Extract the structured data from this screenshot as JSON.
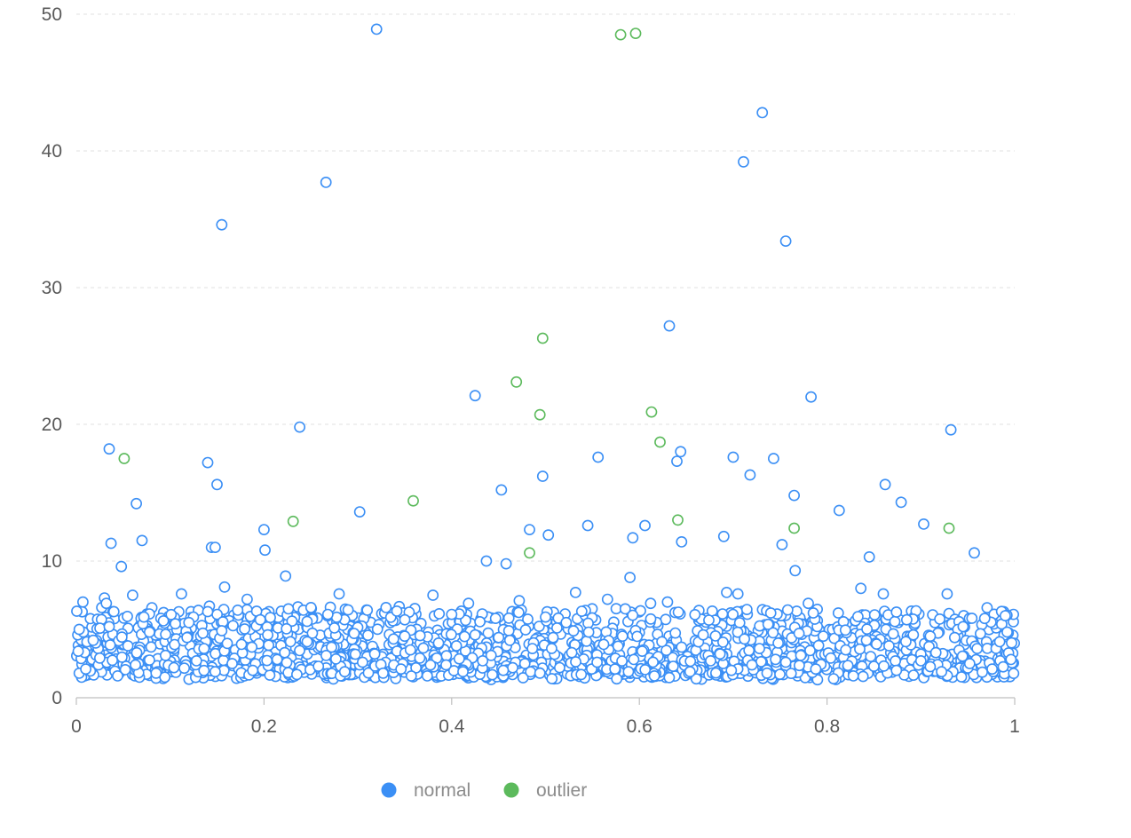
{
  "chart_data": {
    "type": "scatter",
    "title": "",
    "xlabel": "",
    "ylabel": "",
    "xlim": [
      0,
      1
    ],
    "ylim": [
      0,
      50
    ],
    "x_ticks": [
      "0",
      "0.2",
      "0.4",
      "0.6",
      "0.8",
      "1"
    ],
    "y_ticks": [
      "0",
      "10",
      "20",
      "30",
      "40",
      "50"
    ],
    "grid": {
      "horizontal": true,
      "vertical": false,
      "style": "dashed"
    },
    "legend": {
      "position": "bottom-center"
    },
    "series": [
      {
        "name": "normal",
        "color": "#3b8ff5",
        "marker": "hollow-circle",
        "density_band": {
          "y_range": [
            1.3,
            8
          ],
          "note": "dense cluster of points across the full x range 0 to 1"
        },
        "points": [
          [
            0.007,
            7.0
          ],
          [
            0.03,
            7.3
          ],
          [
            0.032,
            6.9
          ],
          [
            0.035,
            5.2
          ],
          [
            0.04,
            6.3
          ],
          [
            0.048,
            9.6
          ],
          [
            0.06,
            7.5
          ],
          [
            0.072,
            5.9
          ],
          [
            0.112,
            7.6
          ],
          [
            0.12,
            5.5
          ],
          [
            0.14,
            6.3
          ],
          [
            0.158,
            8.1
          ],
          [
            0.172,
            6.4
          ],
          [
            0.182,
            7.2
          ],
          [
            0.196,
            5.7
          ],
          [
            0.226,
            6.5
          ],
          [
            0.242,
            6.4
          ],
          [
            0.25,
            6.6
          ],
          [
            0.268,
            6.1
          ],
          [
            0.28,
            7.6
          ],
          [
            0.31,
            6.4
          ],
          [
            0.33,
            6.6
          ],
          [
            0.35,
            4.5
          ],
          [
            0.38,
            7.5
          ],
          [
            0.4,
            6.1
          ],
          [
            0.418,
            6.9
          ],
          [
            0.45,
            4.4
          ],
          [
            0.472,
            7.1
          ],
          [
            0.5,
            5.9
          ],
          [
            0.522,
            5.5
          ],
          [
            0.532,
            7.7
          ],
          [
            0.566,
            7.2
          ],
          [
            0.585,
            6.5
          ],
          [
            0.612,
            6.9
          ],
          [
            0.63,
            7.0
          ],
          [
            0.662,
            4.9
          ],
          [
            0.693,
            7.7
          ],
          [
            0.705,
            7.6
          ],
          [
            0.74,
            6.2
          ],
          [
            0.766,
            9.3
          ],
          [
            0.78,
            6.9
          ],
          [
            0.812,
            6.2
          ],
          [
            0.836,
            8.0
          ],
          [
            0.86,
            7.6
          ],
          [
            0.885,
            5.7
          ],
          [
            0.91,
            4.5
          ],
          [
            0.928,
            7.6
          ],
          [
            0.945,
            5.2
          ],
          [
            0.968,
            5.8
          ],
          [
            0.99,
            6.0
          ],
          [
            0.002,
            3.4
          ],
          [
            0.01,
            2.1
          ],
          [
            0.018,
            4.2
          ],
          [
            0.025,
            2.9
          ],
          [
            0.044,
            1.6
          ],
          [
            0.055,
            3.8
          ],
          [
            0.063,
            2.4
          ],
          [
            0.078,
            4.8
          ],
          [
            0.085,
            1.8
          ],
          [
            0.095,
            3.1
          ],
          [
            0.104,
            2.2
          ],
          [
            0.118,
            4.4
          ],
          [
            0.128,
            2.7
          ],
          [
            0.136,
            3.6
          ],
          [
            0.148,
            1.9
          ],
          [
            0.155,
            4.9
          ],
          [
            0.166,
            2.5
          ],
          [
            0.176,
            3.9
          ],
          [
            0.188,
            2.0
          ],
          [
            0.204,
            4.6
          ],
          [
            0.214,
            2.8
          ],
          [
            0.222,
            3.3
          ],
          [
            0.235,
            1.7
          ],
          [
            0.246,
            4.1
          ],
          [
            0.258,
            2.3
          ],
          [
            0.272,
            3.7
          ],
          [
            0.286,
            1.9
          ],
          [
            0.296,
            4.7
          ],
          [
            0.305,
            2.6
          ],
          [
            0.318,
            3.2
          ],
          [
            0.327,
            1.8
          ],
          [
            0.338,
            4.3
          ],
          [
            0.346,
            2.1
          ],
          [
            0.356,
            3.5
          ],
          [
            0.366,
            2.9
          ],
          [
            0.374,
            1.6
          ],
          [
            0.386,
            4.0
          ],
          [
            0.394,
            2.4
          ],
          [
            0.405,
            3.8
          ],
          [
            0.412,
            1.9
          ],
          [
            0.425,
            4.6
          ],
          [
            0.433,
            2.7
          ],
          [
            0.442,
            3.1
          ],
          [
            0.455,
            2.0
          ],
          [
            0.462,
            4.2
          ],
          [
            0.478,
            2.5
          ],
          [
            0.486,
            3.6
          ],
          [
            0.494,
            1.8
          ],
          [
            0.508,
            4.4
          ],
          [
            0.515,
            2.2
          ],
          [
            0.528,
            3.3
          ],
          [
            0.538,
            1.7
          ],
          [
            0.546,
            4.8
          ],
          [
            0.555,
            2.6
          ],
          [
            0.562,
            3.9
          ],
          [
            0.574,
            2.1
          ],
          [
            0.582,
            4.5
          ],
          [
            0.594,
            2.8
          ],
          [
            0.603,
            3.4
          ],
          [
            0.616,
            1.6
          ],
          [
            0.624,
            4.1
          ],
          [
            0.636,
            2.3
          ],
          [
            0.645,
            3.7
          ],
          [
            0.654,
            1.9
          ],
          [
            0.668,
            4.6
          ],
          [
            0.676,
            2.7
          ],
          [
            0.686,
            3.2
          ],
          [
            0.698,
            2.0
          ],
          [
            0.712,
            4.3
          ],
          [
            0.72,
            2.4
          ],
          [
            0.728,
            3.6
          ],
          [
            0.736,
            1.8
          ],
          [
            0.748,
            4.0
          ],
          [
            0.756,
            2.6
          ],
          [
            0.772,
            3.1
          ],
          [
            0.788,
            2.1
          ],
          [
            0.796,
            4.5
          ],
          [
            0.804,
            2.9
          ],
          [
            0.82,
            3.5
          ],
          [
            0.828,
            1.6
          ],
          [
            0.842,
            4.2
          ],
          [
            0.85,
            2.3
          ],
          [
            0.866,
            3.8
          ],
          [
            0.874,
            2.0
          ],
          [
            0.892,
            4.6
          ],
          [
            0.9,
            2.7
          ],
          [
            0.916,
            3.3
          ],
          [
            0.922,
            1.9
          ],
          [
            0.936,
            4.4
          ],
          [
            0.952,
            2.5
          ],
          [
            0.96,
            3.6
          ],
          [
            0.976,
            2.1
          ],
          [
            0.984,
            4.1
          ],
          [
            0.996,
            2.8
          ]
        ]
      },
      {
        "name": "outlier",
        "color": "#5cba5c",
        "marker": "hollow-circle",
        "points": [
          [
            0.051,
            17.5
          ],
          [
            0.231,
            12.9
          ],
          [
            0.359,
            14.4
          ],
          [
            0.469,
            23.1
          ],
          [
            0.483,
            10.6
          ],
          [
            0.494,
            20.7
          ],
          [
            0.497,
            26.3
          ],
          [
            0.58,
            48.5
          ],
          [
            0.596,
            48.6
          ],
          [
            0.613,
            20.9
          ],
          [
            0.622,
            18.7
          ],
          [
            0.641,
            13.0
          ],
          [
            0.765,
            12.4
          ],
          [
            0.93,
            12.4
          ]
        ]
      }
    ],
    "scattered_points_note": "normal outliers above the dense band",
    "normal_high_points": [
      [
        0.035,
        18.2
      ],
      [
        0.037,
        11.3
      ],
      [
        0.064,
        14.2
      ],
      [
        0.07,
        11.5
      ],
      [
        0.14,
        17.2
      ],
      [
        0.144,
        11.0
      ],
      [
        0.148,
        11.0
      ],
      [
        0.15,
        15.6
      ],
      [
        0.155,
        34.6
      ],
      [
        0.2,
        12.3
      ],
      [
        0.201,
        10.8
      ],
      [
        0.223,
        8.9
      ],
      [
        0.238,
        19.8
      ],
      [
        0.266,
        37.7
      ],
      [
        0.302,
        13.6
      ],
      [
        0.32,
        48.9
      ],
      [
        0.425,
        22.1
      ],
      [
        0.453,
        15.2
      ],
      [
        0.483,
        12.3
      ],
      [
        0.497,
        16.2
      ],
      [
        0.503,
        11.9
      ],
      [
        0.545,
        12.6
      ],
      [
        0.556,
        17.6
      ],
      [
        0.593,
        11.7
      ],
      [
        0.606,
        12.6
      ],
      [
        0.632,
        27.2
      ],
      [
        0.64,
        17.3
      ],
      [
        0.644,
        18.0
      ],
      [
        0.645,
        11.4
      ],
      [
        0.69,
        11.8
      ],
      [
        0.7,
        17.6
      ],
      [
        0.711,
        39.2
      ],
      [
        0.718,
        16.3
      ],
      [
        0.731,
        42.8
      ],
      [
        0.743,
        17.5
      ],
      [
        0.752,
        11.2
      ],
      [
        0.756,
        33.4
      ],
      [
        0.765,
        14.8
      ],
      [
        0.783,
        22.0
      ],
      [
        0.813,
        13.7
      ],
      [
        0.845,
        10.3
      ],
      [
        0.862,
        15.6
      ],
      [
        0.879,
        14.3
      ],
      [
        0.903,
        12.7
      ],
      [
        0.932,
        19.6
      ],
      [
        0.957,
        10.6
      ],
      [
        0.437,
        10.0
      ],
      [
        0.458,
        9.8
      ],
      [
        0.59,
        8.8
      ]
    ]
  }
}
